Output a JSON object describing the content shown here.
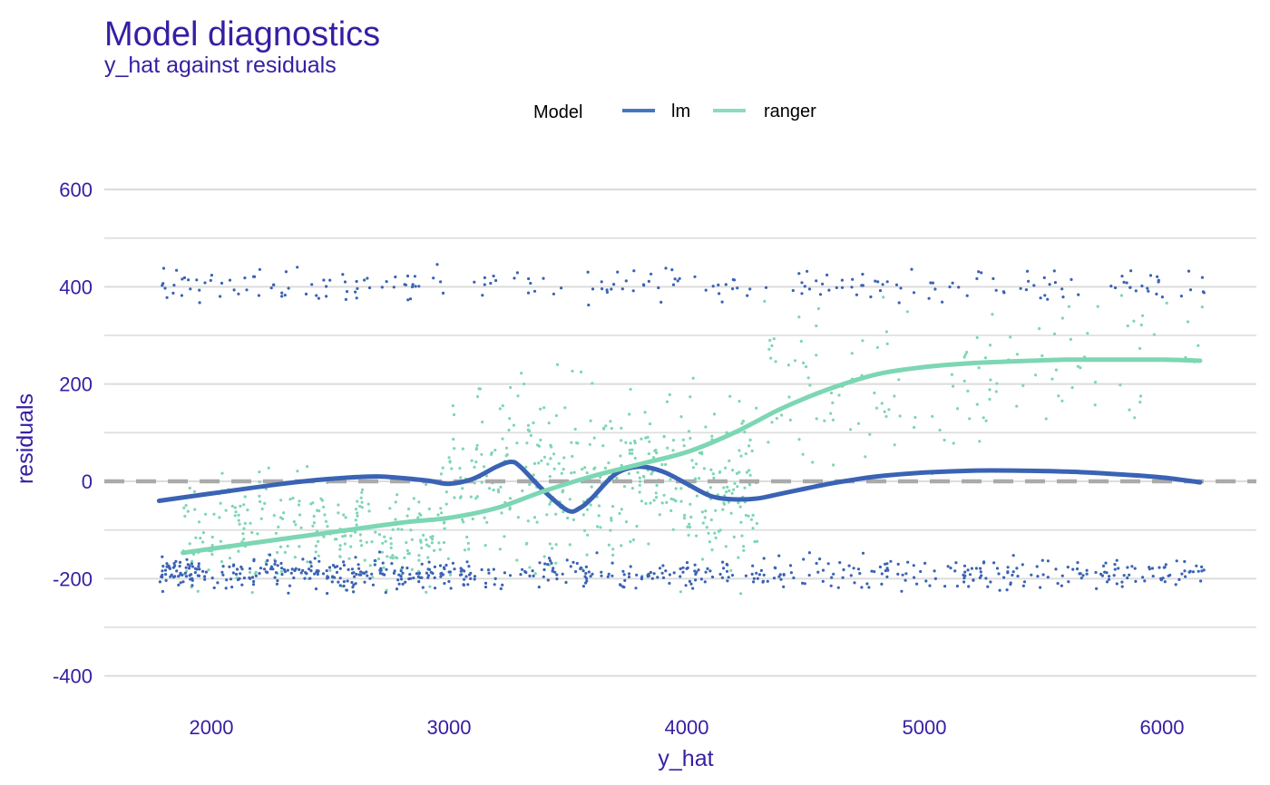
{
  "chart_data": {
    "type": "scatter",
    "title": "Model diagnostics",
    "subtitle": "y_hat against residuals",
    "xlabel": "y_hat",
    "ylabel": "residuals",
    "xlim": [
      1560,
      6300
    ],
    "ylim": [
      -460,
      620
    ],
    "x_ticks": [
      "2000",
      "3000",
      "4000",
      "5000",
      "6000"
    ],
    "y_ticks": [
      "600",
      "400",
      "200",
      "0",
      "-200",
      "-400"
    ],
    "grid": true,
    "reference_line": {
      "y": 0,
      "style": "dashed",
      "color": "#aaaaaa"
    },
    "legend": {
      "title": "Model",
      "position": "top",
      "entries": [
        {
          "name": "lm",
          "color": "#4378bf"
        },
        {
          "name": "ranger",
          "color": "#8bdcbe"
        }
      ]
    },
    "series": [
      {
        "name": "lm",
        "color": "#3a63b4",
        "point_clusters": [
          {
            "x_range": [
              1790,
              6180
            ],
            "y_center": 405,
            "y_spread": 26,
            "count": 220
          },
          {
            "x_range": [
              1780,
              6180
            ],
            "y_center": -190,
            "y_spread": 22,
            "count": 620
          }
        ],
        "smooth": {
          "x": [
            1780,
            2000,
            2300,
            2500,
            2700,
            2900,
            3000,
            3100,
            3200,
            3260,
            3300,
            3400,
            3500,
            3550,
            3600,
            3700,
            3800,
            3900,
            4000,
            4100,
            4200,
            4300,
            4400,
            4500,
            4600,
            4700,
            4800,
            5000,
            5200,
            5400,
            5600,
            5800,
            6000,
            6160
          ],
          "y": [
            -40,
            -25,
            -5,
            5,
            10,
            2,
            -5,
            5,
            30,
            40,
            30,
            -20,
            -60,
            -55,
            -35,
            15,
            30,
            20,
            -5,
            -30,
            -37,
            -35,
            -25,
            -15,
            -5,
            3,
            10,
            18,
            22,
            22,
            20,
            15,
            8,
            -2
          ]
        }
      },
      {
        "name": "ranger",
        "color": "#7dd6b4",
        "point_clusters": [
          {
            "x_range": [
              1880,
              3000
            ],
            "y_center": -100,
            "y_spread": 80,
            "count": 260
          },
          {
            "x_range": [
              3000,
              4300
            ],
            "y_center": 0,
            "y_spread": 130,
            "count": 420
          },
          {
            "x_range": [
              4300,
              5300
            ],
            "y_center": 180,
            "y_spread": 110,
            "count": 90
          },
          {
            "x_range": [
              5300,
              6180
            ],
            "y_center": 240,
            "y_spread": 90,
            "count": 45
          }
        ],
        "smooth": {
          "x": [
            1880,
            2200,
            2500,
            2800,
            3000,
            3200,
            3400,
            3600,
            3800,
            4000,
            4200,
            4400,
            4600,
            4800,
            5000,
            5200,
            5400,
            5600,
            5800,
            6000,
            6160
          ],
          "y": [
            -147,
            -125,
            -105,
            -85,
            -75,
            -55,
            -20,
            10,
            35,
            60,
            100,
            150,
            190,
            220,
            235,
            243,
            247,
            250,
            250,
            250,
            248
          ]
        }
      }
    ]
  }
}
